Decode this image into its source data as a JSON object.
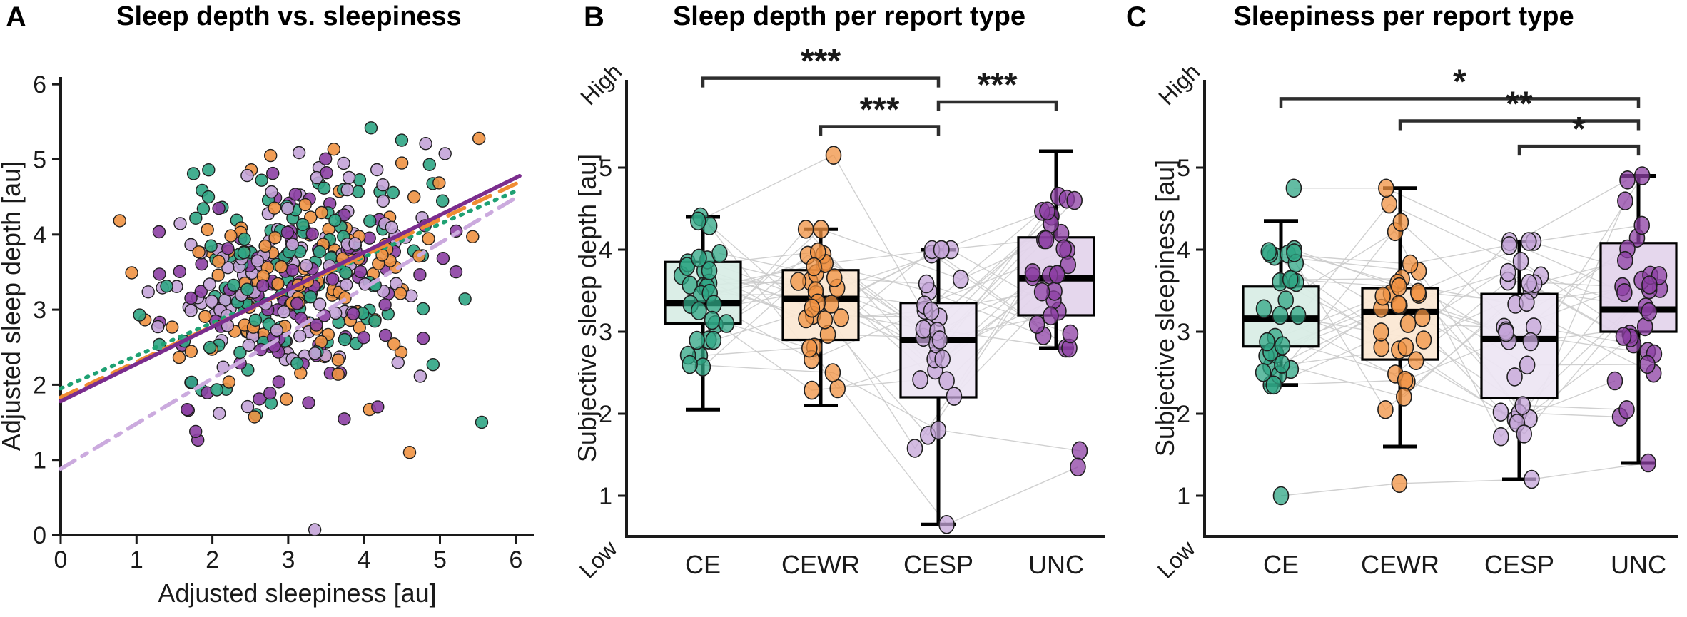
{
  "group_styles": {
    "CE": {
      "point": "#2fa584",
      "box_fill": "#d8ede5",
      "line": "#1fa173"
    },
    "CEWR": {
      "point": "#f09242",
      "box_fill": "#fbe7d2",
      "line": "#f08c33"
    },
    "CESP": {
      "point": "#c4a4d8",
      "box_fill": "#ede5f3",
      "line": "#cbaade"
    },
    "UNC": {
      "point": "#8c3fa3",
      "box_fill": "#e3d4ec",
      "line": "#7b2d8e"
    }
  },
  "accents": {
    "axis_color": "#1a1a1a",
    "bracket_color": "#2e2e2e",
    "subject_line_color": "#cbcbcb",
    "high_color": "#a31212",
    "low_color": "#1c3f78",
    "point_edge": "#1f1f1f"
  },
  "chart_data": [
    {
      "id": "A",
      "type": "scatter",
      "panel_label": "A",
      "title": "Sleep depth vs. sleepiness",
      "xlabel": "Adjusted sleepiness [au]",
      "ylabel": "Adjusted sleep depth [au]",
      "xlim": [
        0,
        6
      ],
      "ylim": [
        0,
        6
      ],
      "xticks": [
        0,
        1,
        2,
        3,
        4,
        5,
        6
      ],
      "yticks": [
        0,
        1,
        2,
        3,
        4,
        5,
        6
      ],
      "groups": [
        {
          "name": "CE",
          "line_style": "dotted",
          "trend": {
            "x": [
              0,
              6.05
            ],
            "y": [
              1.95,
              4.6
            ]
          }
        },
        {
          "name": "CEWR",
          "line_style": "dashed",
          "trend": {
            "x": [
              0,
              6.05
            ],
            "y": [
              1.83,
              4.7
            ]
          }
        },
        {
          "name": "CESP",
          "line_style": "dashdot",
          "trend": {
            "x": [
              0,
              6.05
            ],
            "y": [
              0.88,
              4.52
            ]
          }
        },
        {
          "name": "UNC",
          "line_style": "solid",
          "trend": {
            "x": [
              0,
              6.05
            ],
            "y": [
              1.78,
              4.78
            ]
          }
        }
      ],
      "cloud": {
        "points_per_group": 115,
        "center": [
          3.05,
          3.38
        ],
        "sd": [
          0.85,
          0.76
        ],
        "xy_slope": 0.22,
        "seed": 11
      },
      "extra_points": [
        {
          "group": "CE",
          "x": 5.55,
          "y": 1.5
        },
        {
          "group": "CEWR",
          "x": 4.6,
          "y": 1.1
        },
        {
          "group": "CESP",
          "x": 3.35,
          "y": 0.07
        }
      ]
    },
    {
      "id": "B",
      "type": "boxplot",
      "panel_label": "B",
      "title": "Sleep depth per report type",
      "ylabel": "Subjective sleep depth [au]",
      "high_label": "High",
      "low_label": "Low",
      "categories": [
        "CE",
        "CEWR",
        "CESP",
        "UNC"
      ],
      "yticks": [
        1,
        2,
        3,
        4,
        5
      ],
      "boxes": [
        {
          "category": "CE",
          "whisker_low": 2.05,
          "q1": 3.1,
          "median": 3.35,
          "q3": 3.85,
          "whisker_high": 4.4
        },
        {
          "category": "CEWR",
          "whisker_low": 2.1,
          "q1": 2.9,
          "median": 3.4,
          "q3": 3.75,
          "whisker_high": 4.25
        },
        {
          "category": "CESP",
          "whisker_low": 0.65,
          "q1": 2.2,
          "median": 2.9,
          "q3": 3.35,
          "whisker_high": 4.0
        },
        {
          "category": "UNC",
          "whisker_low": 2.8,
          "q1": 3.2,
          "median": 3.65,
          "q3": 4.15,
          "whisker_high": 5.2
        }
      ],
      "n_subjects": 30,
      "seed": 23,
      "highlight_subjects": [
        [
          4.35,
          5.15,
          2.9,
          4.6
        ],
        [
          2.6,
          2.5,
          1.8,
          1.55
        ],
        [
          3.1,
          2.8,
          0.65,
          1.35
        ]
      ],
      "significance": [
        {
          "from": "CE",
          "to": "CESP",
          "label": "***",
          "height": 6.09
        },
        {
          "from": "CESP",
          "to": "UNC",
          "label": "***",
          "height": 5.8
        },
        {
          "from": "CEWR",
          "to": "CESP",
          "label": "***",
          "height": 5.5
        }
      ]
    },
    {
      "id": "C",
      "type": "boxplot",
      "panel_label": "C",
      "title": "Sleepiness per report type",
      "ylabel": "Subjective sleepiness [au]",
      "high_label": "High",
      "low_label": "Low",
      "categories": [
        "CE",
        "CEWR",
        "CESP",
        "UNC"
      ],
      "yticks": [
        1,
        2,
        3,
        4,
        5
      ],
      "boxes": [
        {
          "category": "CE",
          "whisker_low": 2.35,
          "q1": 2.82,
          "median": 3.16,
          "q3": 3.55,
          "whisker_high": 4.35
        },
        {
          "category": "CEWR",
          "whisker_low": 1.6,
          "q1": 2.66,
          "median": 3.24,
          "q3": 3.53,
          "whisker_high": 4.75
        },
        {
          "category": "CESP",
          "whisker_low": 1.2,
          "q1": 2.19,
          "median": 2.91,
          "q3": 3.46,
          "whisker_high": 4.1
        },
        {
          "category": "UNC",
          "whisker_low": 1.4,
          "q1": 3.0,
          "median": 3.27,
          "q3": 4.08,
          "whisker_high": 4.9
        }
      ],
      "n_subjects": 30,
      "seed": 57,
      "highlight_subjects": [
        [
          4.75,
          4.75,
          4.05,
          4.85
        ],
        [
          1.0,
          1.15,
          1.2,
          1.4
        ],
        [
          3.2,
          2.9,
          2.1,
          2.05
        ]
      ],
      "significance": [
        {
          "from": "CE",
          "to": "UNC",
          "label": "*",
          "height": 5.84
        },
        {
          "from": "CEWR",
          "to": "UNC",
          "label": "**",
          "height": 5.57
        },
        {
          "from": "CESP",
          "to": "UNC",
          "label": "*",
          "height": 5.26
        }
      ]
    }
  ]
}
